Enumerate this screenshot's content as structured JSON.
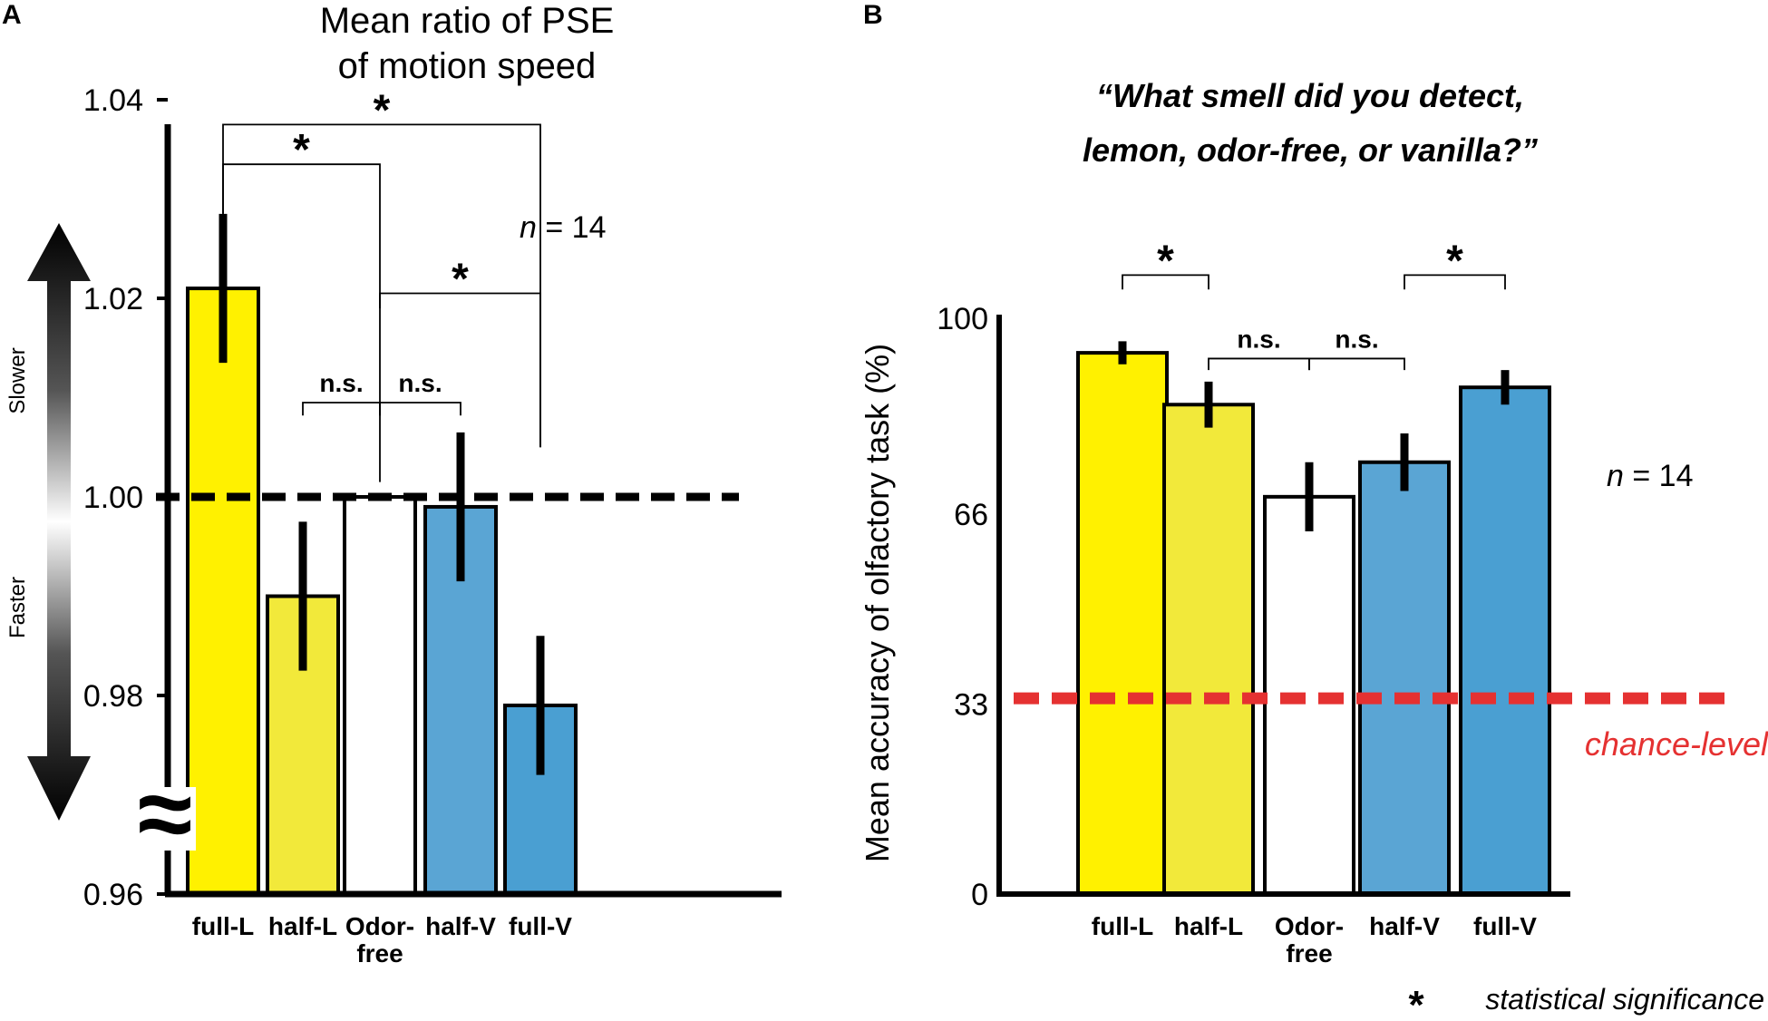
{
  "colors": {
    "yellow_full": "#fff100",
    "yellow_half": "#f2e93a",
    "white": "#ffffff",
    "blue_half": "#5aa5d4",
    "blue_full": "#4a9fd2",
    "chance_red": "#e53131",
    "axis": "#000000"
  },
  "footnote": "statistical significance",
  "footnote_star": "*",
  "chart_data": [
    {
      "panel": "A",
      "type": "bar",
      "title_lines": [
        "Mean ratio of PSE",
        "of motion speed"
      ],
      "categories": [
        {
          "lines": [
            "full-L"
          ]
        },
        {
          "lines": [
            "half-L"
          ]
        },
        {
          "lines": [
            "Odor-",
            "free"
          ]
        },
        {
          "lines": [
            "half-V"
          ]
        },
        {
          "lines": [
            "full-V"
          ]
        }
      ],
      "values": [
        1.021,
        0.99,
        1.0,
        0.999,
        0.979
      ],
      "errors": [
        0.0075,
        0.0075,
        0.0,
        0.0075,
        0.007
      ],
      "fill_keys": [
        "yellow_full",
        "yellow_half",
        "white",
        "blue_half",
        "blue_full"
      ],
      "ylim": [
        0.96,
        1.04
      ],
      "yticks": [
        {
          "value": 0.96,
          "label": "0.96"
        },
        {
          "value": 0.98,
          "label": "0.98"
        },
        {
          "value": 1.0,
          "label": "1.00"
        },
        {
          "value": 1.02,
          "label": "1.02"
        },
        {
          "value": 1.04,
          "label": "1.04"
        }
      ],
      "reference_line": {
        "value": 1.0,
        "style": "dashed",
        "color": "#000000"
      },
      "axis_break_symbol": "≈",
      "side_arrow": {
        "up_label": "Slower",
        "down_label": "Faster"
      },
      "n_label": {
        "italic": "n",
        "rest": " = 14"
      },
      "significance": [
        {
          "from": 0,
          "to": 4,
          "label": "*",
          "level": 1.0375,
          "drop_from": 1.0285,
          "drop_to": 1.005
        },
        {
          "from": 0,
          "to": 2,
          "label": "*",
          "level": 1.0335,
          "drop_from": 1.0285,
          "drop_to": 1.0015
        },
        {
          "from": 2,
          "to": 4,
          "label": "*",
          "level": 1.0205,
          "drop_from": 1.019,
          "drop_to": 1.005
        },
        {
          "from": 1,
          "to": 2,
          "label": "n.s.",
          "level": 1.0095,
          "drop_from": 1.0082,
          "drop_to": 1.0082
        },
        {
          "from": 2,
          "to": 3,
          "label": "n.s.",
          "level": 1.0095,
          "drop_from": 1.0082,
          "drop_to": 1.0082
        }
      ]
    },
    {
      "panel": "B",
      "type": "bar",
      "title_lines": [
        "“What smell did you detect,",
        "lemon, odor-free, or vanilla?”"
      ],
      "ylabel": "Mean accuracy of olfactory task (%)",
      "categories": [
        {
          "lines": [
            "full-L"
          ]
        },
        {
          "lines": [
            "half-L"
          ]
        },
        {
          "lines": [
            "Odor-",
            "free"
          ]
        },
        {
          "lines": [
            "half-V"
          ]
        },
        {
          "lines": [
            "full-V"
          ]
        }
      ],
      "values": [
        94,
        85,
        69,
        75,
        88
      ],
      "errors": [
        2,
        4,
        6,
        5,
        3
      ],
      "fill_keys": [
        "yellow_full",
        "yellow_half",
        "white",
        "blue_half",
        "blue_full"
      ],
      "ylim": [
        0,
        100
      ],
      "yticks": [
        {
          "value": 0,
          "label": "0"
        },
        {
          "value": 33,
          "label": "33"
        },
        {
          "value": 66,
          "label": "66"
        },
        {
          "value": 100,
          "label": "100"
        }
      ],
      "reference_line": {
        "value": 34,
        "style": "dashed",
        "color": "#e53131",
        "label": "chance-level"
      },
      "n_label": {
        "italic": "n",
        "rest": " = 14"
      },
      "significance": [
        {
          "from": 0,
          "to": 1,
          "label": "*",
          "level": 107.5,
          "drop_from": 105,
          "drop_to": 105
        },
        {
          "from": 1,
          "to": 2,
          "label": "n.s.",
          "level": 93,
          "drop_from": 91,
          "drop_to": 91
        },
        {
          "from": 2,
          "to": 3,
          "label": "n.s.",
          "level": 93,
          "drop_from": 91,
          "drop_to": 91
        },
        {
          "from": 3,
          "to": 4,
          "label": "*",
          "level": 107.5,
          "drop_from": 105,
          "drop_to": 105
        }
      ]
    }
  ]
}
